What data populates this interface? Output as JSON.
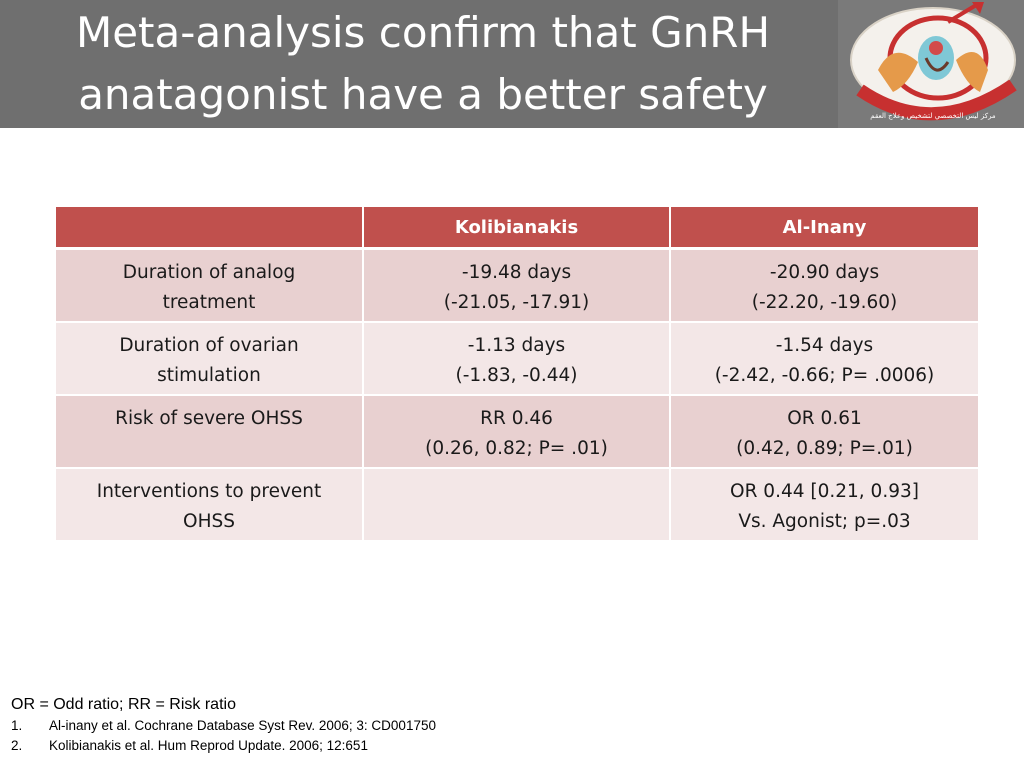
{
  "slide": {
    "title_lines": [
      "Meta-analysis confirm that GnRH",
      "anatagonist have a better safety"
    ],
    "colors": {
      "header_bg": "#6f6f6f",
      "table_header": "#c0504d",
      "row_odd": "#e8d0d0",
      "row_even": "#f3e7e7"
    },
    "logo": {
      "icon": "fertility-center-logo-icon",
      "caption": "مركز ليس التخصصي لتشخيص وعلاج العقم"
    }
  },
  "table": {
    "headers": [
      "",
      "Kolibianakis",
      "Al-Inany"
    ],
    "rows": [
      {
        "label": [
          "Duration of analog",
          "treatment"
        ],
        "col1": [
          "-19.48 days",
          "(-21.05, -17.91)"
        ],
        "col2": [
          "-20.90 days",
          "(-22.20, -19.60)"
        ]
      },
      {
        "label": [
          "Duration of ovarian",
          "stimulation"
        ],
        "col1": [
          "-1.13 days",
          "(-1.83, -0.44)"
        ],
        "col2": [
          "-1.54 days",
          "(-2.42, -0.66; P= .0006)"
        ]
      },
      {
        "label": [
          "Risk of severe OHSS",
          ""
        ],
        "col1": [
          "RR 0.46",
          "(0.26, 0.82; P= .01)"
        ],
        "col2": [
          "OR 0.61",
          "(0.42, 0.89; P=.01)"
        ]
      },
      {
        "label": [
          "Interventions to prevent",
          "OHSS"
        ],
        "col1": [
          "",
          ""
        ],
        "col2": [
          "OR 0.44 [0.21, 0.93]",
          "Vs. Agonist; p=.03"
        ]
      }
    ]
  },
  "footnotes": {
    "abbreviations": "OR = Odd ratio; RR = Risk ratio",
    "references": [
      {
        "num": "1.",
        "text": "Al-inany et al. Cochrane Database Syst Rev. 2006; 3: CD001750"
      },
      {
        "num": "2.",
        "text": "Kolibianakis et al. Hum Reprod Update. 2006; 12:651"
      }
    ]
  }
}
